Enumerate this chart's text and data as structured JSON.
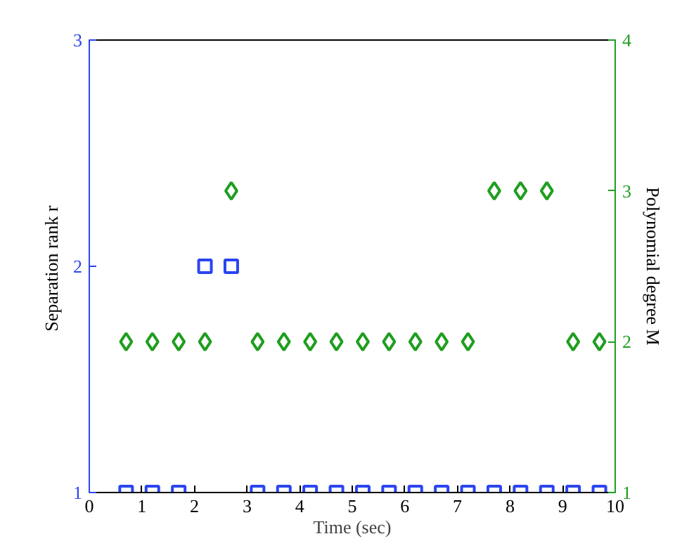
{
  "chart_data": {
    "type": "scatter",
    "xlabel": "Time (sec)",
    "ylabel": "Separation rank  r",
    "y2label": "Polynomial degree M",
    "x": [
      0.7,
      1.2,
      1.7,
      2.2,
      2.7,
      3.2,
      3.7,
      4.2,
      4.7,
      5.2,
      5.7,
      6.2,
      6.7,
      7.2,
      7.7,
      8.2,
      8.7,
      9.2,
      9.7
    ],
    "xlim": [
      0,
      10
    ],
    "xticks": [
      0,
      1,
      2,
      3,
      4,
      5,
      6,
      7,
      8,
      9,
      10
    ],
    "ylim": [
      1,
      3
    ],
    "yticks": [
      1,
      2,
      3
    ],
    "y2lim": [
      1,
      4
    ],
    "y2ticks": [
      1,
      2,
      3,
      4
    ],
    "grid": false,
    "series": [
      {
        "color": "#2b45f0",
        "marker": "square",
        "values": [
          1,
          1,
          1,
          2,
          2,
          1,
          1,
          1,
          1,
          1,
          1,
          1,
          1,
          1,
          1,
          1,
          1,
          1,
          1
        ]
      },
      {
        "color": "#1f9e1f",
        "marker": "diamond",
        "axis": "y2",
        "values": [
          2,
          2,
          2,
          2,
          3,
          2,
          2,
          2,
          2,
          2,
          2,
          2,
          2,
          2,
          3,
          3,
          3,
          2,
          2
        ]
      }
    ]
  }
}
